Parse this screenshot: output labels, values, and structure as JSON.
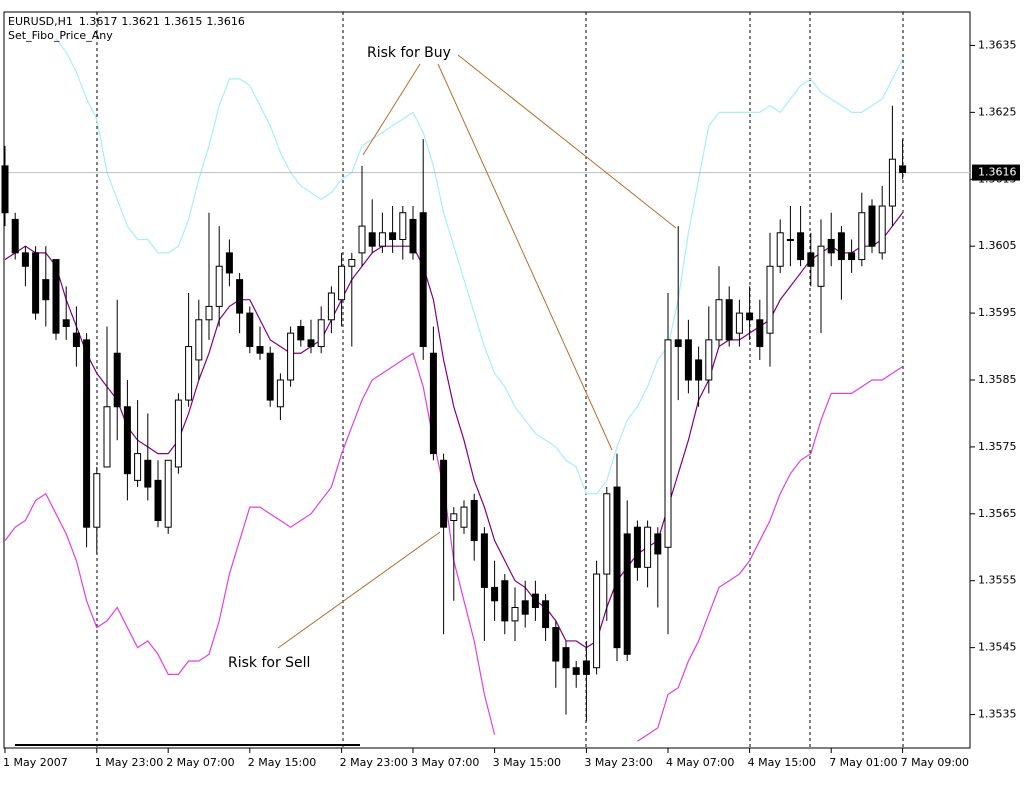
{
  "chart_data": {
    "type": "candlestick",
    "symbol": "EURUSD,H1",
    "indicator": "Set_Fibo_Price_Any",
    "categories": [
      "1 May 2007",
      null,
      null,
      null,
      null,
      null,
      null,
      null,
      null,
      "1 May 23:00",
      null,
      null,
      null,
      null,
      null,
      null,
      "2 May 07:00",
      null,
      null,
      null,
      null,
      null,
      null,
      null,
      "2 May 15:00",
      null,
      null,
      null,
      null,
      null,
      null,
      null,
      null,
      "2 May 23:00",
      null,
      null,
      null,
      null,
      null,
      null,
      "3 May 07:00",
      null,
      null,
      null,
      null,
      null,
      null,
      null,
      "3 May 15:00",
      null,
      null,
      null,
      null,
      null,
      null,
      null,
      null,
      "3 May 23:00",
      null,
      null,
      null,
      null,
      null,
      null,
      null,
      "4 May 07:00",
      null,
      null,
      null,
      null,
      null,
      null,
      null,
      "4 May 15:00",
      null,
      null,
      null,
      null,
      null,
      null,
      null,
      "7 May 01:00",
      null,
      null,
      null,
      null,
      null,
      null,
      "7 May 09:00"
    ],
    "open": [
      1.3617,
      1.3609,
      1.3604,
      1.3604,
      1.36,
      1.3603,
      1.3594,
      1.3592,
      1.3591,
      1.3563,
      1.3572,
      1.3589,
      1.3581,
      1.357,
      1.3573,
      1.357,
      1.3563,
      1.3572,
      1.3582,
      1.3588,
      1.3594,
      1.3596,
      1.3604,
      1.36,
      1.3595,
      1.359,
      1.3589,
      1.3581,
      1.3585,
      1.3593,
      1.3591,
      1.359,
      1.3594,
      1.3597,
      1.3602,
      1.3604,
      1.3607,
      1.3605,
      1.3607,
      1.3606,
      1.3609,
      1.361,
      1.3589,
      1.3573,
      1.3564,
      1.3563,
      1.3567,
      1.3562,
      1.3554,
      1.3555,
      1.3549,
      1.3552,
      1.3553,
      1.3552,
      1.3548,
      1.3545,
      1.3542,
      1.3543,
      1.3542,
      1.3556,
      1.3569,
      1.3562,
      1.3563,
      1.3557,
      1.3562,
      1.356,
      1.3591,
      1.3591,
      1.3588,
      1.3585,
      1.3591,
      1.3597,
      1.3592,
      1.3595,
      1.3594,
      1.3592,
      1.3602,
      1.3606,
      1.3607,
      1.3604,
      1.3599,
      1.3606,
      1.3607,
      1.3604,
      1.3603,
      1.3611,
      1.3604,
      1.3611,
      1.3617
    ],
    "high": [
      1.362,
      1.361,
      1.3605,
      1.3605,
      1.3605,
      1.3603,
      1.3599,
      1.3596,
      1.3592,
      1.3572,
      1.3593,
      1.3597,
      1.3585,
      1.3582,
      1.358,
      1.3573,
      1.3573,
      1.3583,
      1.3598,
      1.3597,
      1.361,
      1.3608,
      1.3606,
      1.3601,
      1.3596,
      1.3593,
      1.359,
      1.3586,
      1.3593,
      1.3594,
      1.3594,
      1.3596,
      1.3599,
      1.3604,
      1.3604,
      1.3617,
      1.3612,
      1.361,
      1.3611,
      1.3611,
      1.3611,
      1.3621,
      1.3593,
      1.3574,
      1.3566,
      1.3567,
      1.3568,
      1.3563,
      1.3558,
      1.3556,
      1.3554,
      1.3555,
      1.3555,
      1.3553,
      1.3549,
      1.3546,
      1.3543,
      1.3546,
      1.3558,
      1.3569,
      1.3574,
      1.3567,
      1.3564,
      1.3564,
      1.3563,
      1.3598,
      1.3608,
      1.3594,
      1.359,
      1.3596,
      1.3602,
      1.3599,
      1.3597,
      1.3599,
      1.3597,
      1.3607,
      1.3609,
      1.3611,
      1.3611,
      1.3607,
      1.3609,
      1.361,
      1.3608,
      1.3606,
      1.3613,
      1.3612,
      1.3614,
      1.3626,
      1.3621
    ],
    "low": [
      1.3608,
      1.3603,
      1.3599,
      1.3594,
      1.3593,
      1.3591,
      1.3591,
      1.3587,
      1.356,
      1.3559,
      1.3572,
      1.3576,
      1.3567,
      1.3569,
      1.3567,
      1.3563,
      1.3562,
      1.3571,
      1.3581,
      1.3585,
      1.3591,
      1.3593,
      1.3599,
      1.3592,
      1.3589,
      1.3588,
      1.3581,
      1.3579,
      1.3584,
      1.359,
      1.3589,
      1.3589,
      1.3592,
      1.3593,
      1.359,
      1.3602,
      1.3604,
      1.3604,
      1.3604,
      1.3603,
      1.3603,
      1.3588,
      1.3573,
      1.3547,
      1.3552,
      1.3562,
      1.3558,
      1.3546,
      1.3549,
      1.3547,
      1.3546,
      1.3548,
      1.3549,
      1.3546,
      1.3539,
      1.3535,
      1.3539,
      1.3534,
      1.3541,
      1.3549,
      1.3543,
      1.3543,
      1.3555,
      1.3554,
      1.3551,
      1.3547,
      1.3582,
      1.3583,
      1.3581,
      1.3583,
      1.359,
      1.359,
      1.359,
      1.3591,
      1.3588,
      1.3587,
      1.3601,
      1.3602,
      1.3602,
      1.3599,
      1.3592,
      1.3602,
      1.3597,
      1.3601,
      1.3602,
      1.3604,
      1.3603,
      1.3608,
      1.3615
    ],
    "close": [
      1.361,
      1.3604,
      1.3602,
      1.3595,
      1.3597,
      1.3592,
      1.3593,
      1.359,
      1.3563,
      1.3571,
      1.3581,
      1.3581,
      1.3571,
      1.3574,
      1.3569,
      1.3564,
      1.3573,
      1.3582,
      1.359,
      1.3594,
      1.3596,
      1.3602,
      1.3601,
      1.3595,
      1.359,
      1.3589,
      1.3582,
      1.3585,
      1.3592,
      1.3591,
      1.359,
      1.3594,
      1.3598,
      1.3602,
      1.3603,
      1.3608,
      1.3605,
      1.3607,
      1.3606,
      1.361,
      1.3604,
      1.359,
      1.3574,
      1.3563,
      1.3565,
      1.3566,
      1.3561,
      1.3554,
      1.3552,
      1.3549,
      1.3551,
      1.355,
      1.3551,
      1.3548,
      1.3543,
      1.3542,
      1.3541,
      1.3541,
      1.3556,
      1.3568,
      1.3545,
      1.3544,
      1.3557,
      1.3563,
      1.3559,
      1.3591,
      1.359,
      1.3585,
      1.3585,
      1.3591,
      1.3597,
      1.3591,
      1.3595,
      1.3594,
      1.359,
      1.3602,
      1.3607,
      1.3606,
      1.3603,
      1.3602,
      1.3605,
      1.3604,
      1.3603,
      1.3603,
      1.361,
      1.3605,
      1.3611,
      1.3618,
      1.3616
    ],
    "up_color": "#ffffff",
    "down_color": "#000000",
    "lines": [
      {
        "color": "#a8f0f0",
        "values": [
          null,
          null,
          null,
          null,
          null,
          1.3636,
          1.3634,
          1.3631,
          1.3627,
          1.3624,
          1.3616,
          1.3612,
          1.3608,
          1.3606,
          1.3606,
          1.3604,
          1.3604,
          1.3605,
          1.3609,
          1.3615,
          1.362,
          1.3626,
          1.363,
          1.363,
          1.3629,
          1.3626,
          1.3623,
          1.3619,
          1.3616,
          1.3614,
          1.3613,
          1.3612,
          1.3613,
          1.3615,
          1.3616,
          1.362,
          1.3621,
          1.3622,
          1.3623,
          1.3624,
          1.3625,
          1.3622,
          1.3617,
          1.361,
          1.3605,
          1.36,
          1.3595,
          1.359,
          1.3586,
          1.3584,
          1.3581,
          1.3579,
          1.3577,
          1.3576,
          1.3575,
          1.3573,
          1.3572,
          1.3568,
          1.3568,
          1.357,
          1.3575,
          1.3579,
          1.3581,
          1.3584,
          1.3588,
          1.359,
          1.3597,
          1.3607,
          1.3615,
          1.3623,
          1.3625,
          1.3625,
          1.3625,
          1.3625,
          1.3625,
          1.3626,
          1.3625,
          1.3627,
          1.3629,
          1.363,
          1.3628,
          1.3627,
          1.3626,
          1.3625,
          1.3625,
          1.3626,
          1.3627,
          1.363,
          1.3633
        ]
      },
      {
        "color": "#e040e0",
        "values": [
          1.3561,
          1.3563,
          1.3564,
          1.3567,
          1.3568,
          1.3565,
          1.3562,
          1.3558,
          1.3552,
          1.3548,
          1.3549,
          1.3551,
          1.3548,
          1.3545,
          1.3546,
          1.3544,
          1.3541,
          1.3541,
          1.3543,
          1.3543,
          1.3544,
          1.3549,
          1.3556,
          1.3561,
          1.3566,
          1.3566,
          1.3565,
          1.3564,
          1.3563,
          1.3564,
          1.3565,
          1.3567,
          1.3569,
          1.3574,
          1.3578,
          1.3582,
          1.3585,
          1.3586,
          1.3587,
          1.3588,
          1.3589,
          1.3584,
          1.3576,
          1.3569,
          1.3558,
          1.3552,
          1.3546,
          1.3538,
          1.3532,
          null,
          null,
          null,
          null,
          null,
          null,
          null,
          null,
          null,
          null,
          null,
          null,
          null,
          1.3531,
          1.3532,
          1.3533,
          1.3538,
          1.3539,
          1.3543,
          1.3546,
          1.355,
          1.3554,
          1.3555,
          1.3556,
          1.3558,
          1.3561,
          1.3564,
          1.3568,
          1.3571,
          1.3573,
          1.3574,
          1.3579,
          1.3583,
          1.3583,
          1.3583,
          1.3584,
          1.3585,
          1.3585,
          1.3586,
          1.3587
        ]
      },
      {
        "color": "#800080",
        "values": [
          1.3603,
          1.3604,
          1.3605,
          1.3604,
          1.3604,
          1.3602,
          1.3597,
          1.3593,
          1.3589,
          1.3586,
          1.3584,
          1.3582,
          1.3578,
          1.3576,
          1.3575,
          1.3574,
          1.3574,
          1.3576,
          1.358,
          1.3585,
          1.3589,
          1.3594,
          1.3596,
          1.3597,
          1.3597,
          1.3594,
          1.3591,
          1.359,
          1.3589,
          1.3589,
          1.359,
          1.3591,
          1.3594,
          1.3597,
          1.36,
          1.3602,
          1.3604,
          1.3605,
          1.3605,
          1.3605,
          1.3605,
          1.3602,
          1.3597,
          1.3588,
          1.3581,
          1.3576,
          1.357,
          1.3566,
          1.3561,
          1.3558,
          1.3555,
          1.3554,
          1.3552,
          1.3551,
          1.3549,
          1.3546,
          1.3546,
          1.3545,
          1.3546,
          1.3551,
          1.3555,
          1.3557,
          1.3559,
          1.356,
          1.3561,
          1.3566,
          1.3571,
          1.3576,
          1.3582,
          1.3585,
          1.359,
          1.3591,
          1.3591,
          1.3592,
          1.3593,
          1.3594,
          1.3597,
          1.3599,
          1.3601,
          1.3603,
          1.3604,
          1.3605,
          1.3604,
          1.3604,
          1.3605,
          1.3605,
          1.3606,
          1.3608,
          1.361
        ]
      }
    ],
    "ylim": [
      1.353,
      1.364
    ],
    "yticks": [
      1.3535,
      1.3545,
      1.3555,
      1.3565,
      1.3575,
      1.3585,
      1.3595,
      1.3605,
      1.3615,
      1.3625,
      1.3635
    ],
    "annotations": [
      {
        "text": "Risk for Buy"
      },
      {
        "text": "Risk for Sell"
      }
    ]
  }
}
